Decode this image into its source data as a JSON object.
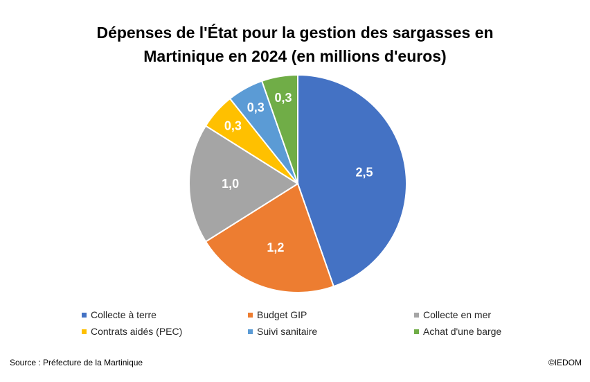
{
  "chart_data": {
    "type": "pie",
    "title_lines": [
      "Dépenses de l'État pour la gestion des sargasses en",
      "Martinique en 2024 (en millions d'euros)"
    ],
    "categories": [
      "Collecte à terre",
      "Budget GIP",
      "Collecte en mer",
      "Contrats aidés (PEC)",
      "Suivi sanitaire",
      "Achat d'une barge"
    ],
    "values": [
      2.5,
      1.2,
      1.0,
      0.3,
      0.3,
      0.3
    ],
    "labels": [
      "2,5",
      "1,2",
      "1,0",
      "0,3",
      "0,3",
      "0,3"
    ],
    "colors": [
      "#4472C4",
      "#ED7D31",
      "#A5A5A5",
      "#FFC000",
      "#5B9BD5",
      "#70AD47"
    ],
    "legend_position": "bottom"
  },
  "footer": {
    "source": "Source : Préfecture de la Martinique",
    "copyright": "©IEDOM"
  }
}
